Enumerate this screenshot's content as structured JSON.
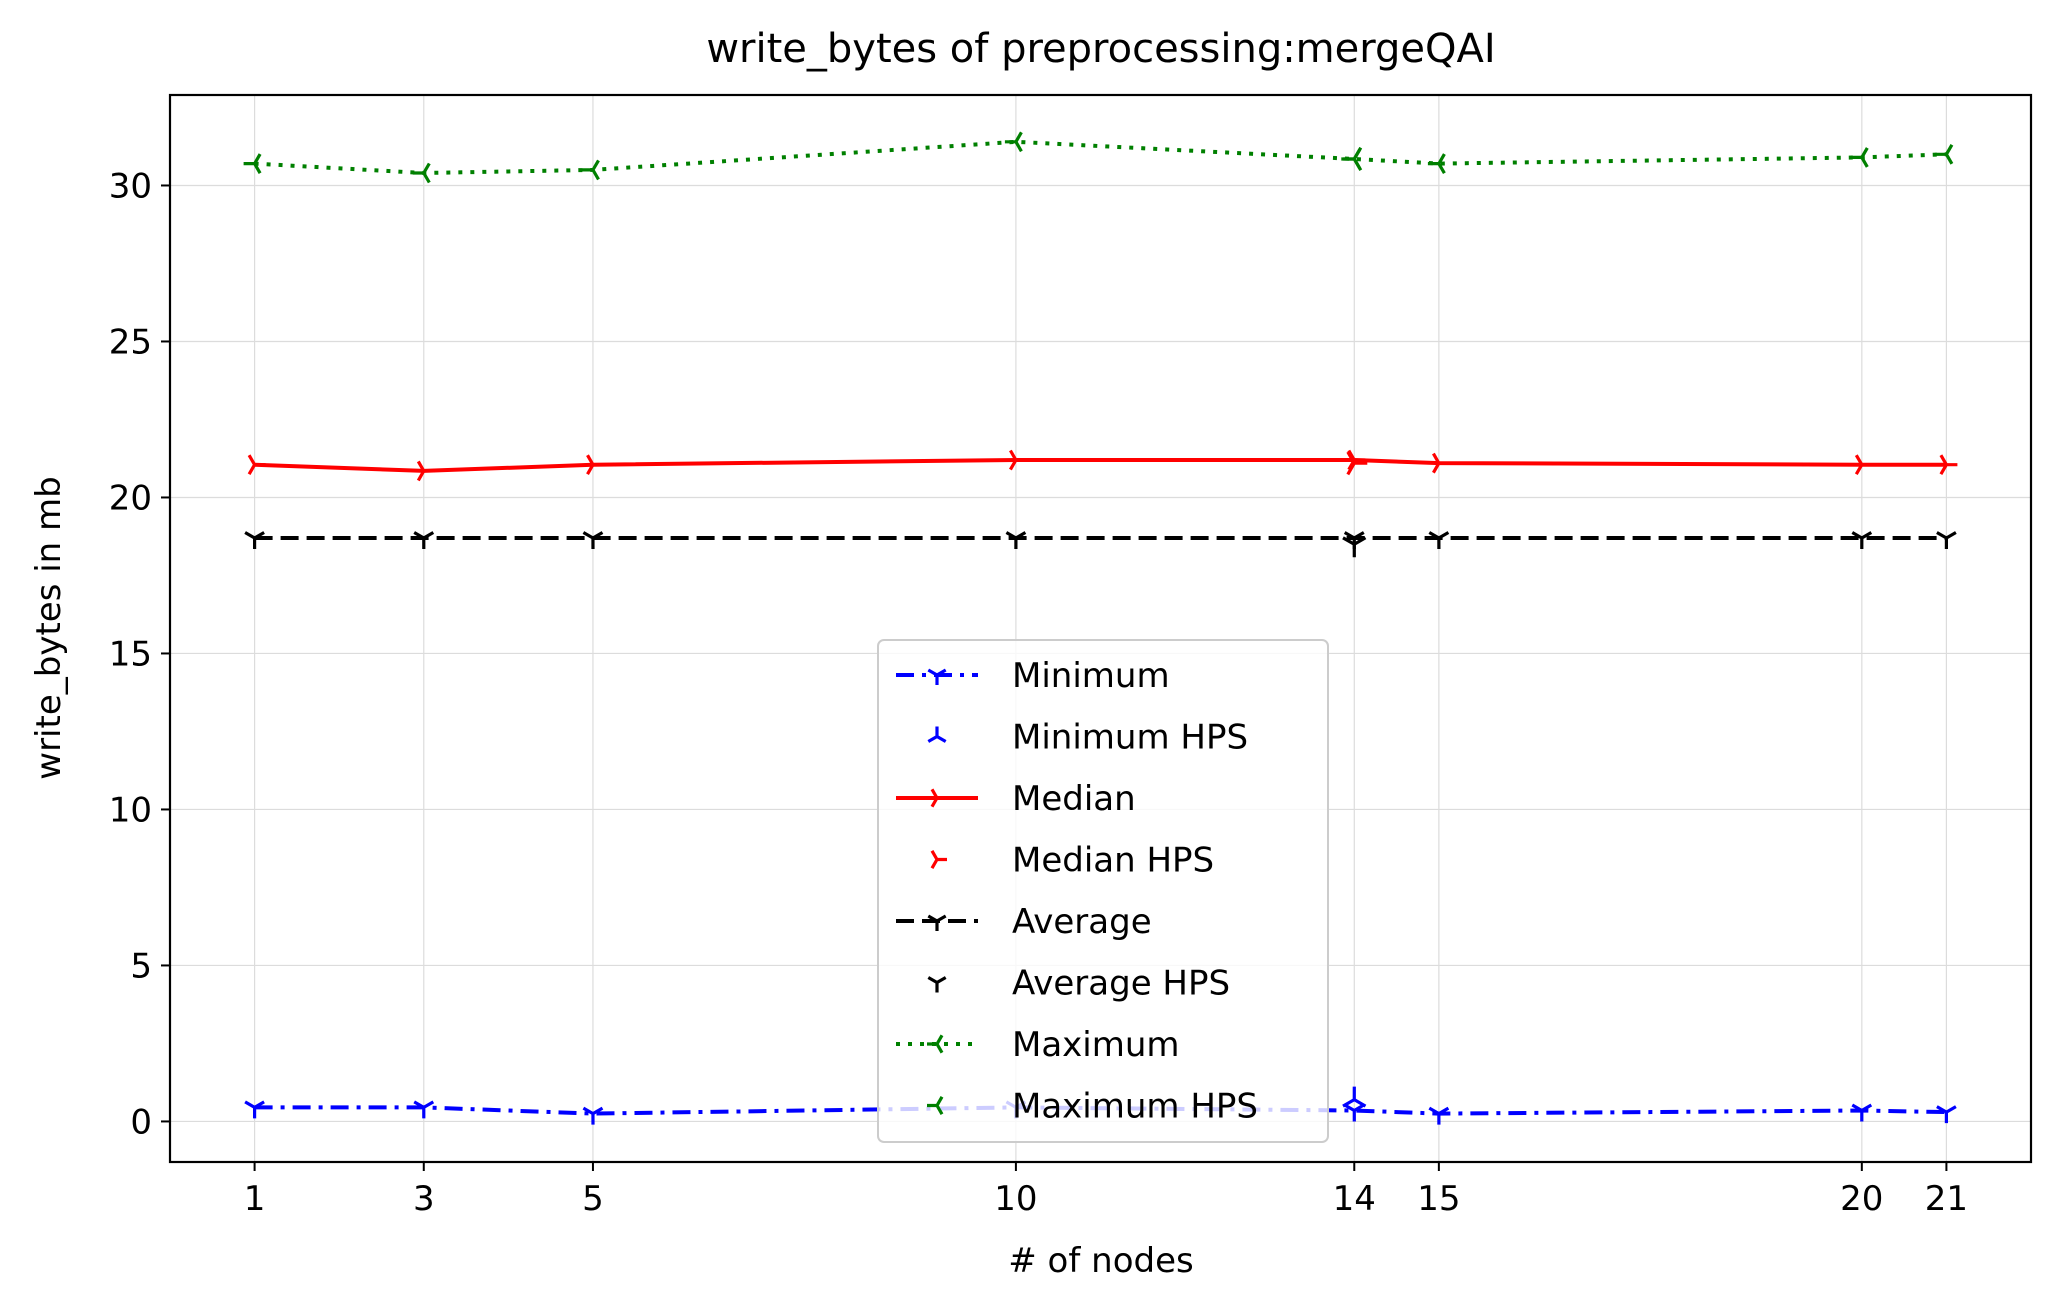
{
  "chart_data": {
    "type": "line",
    "title": "write_bytes of preprocessing:mergeQAI",
    "xlabel": "# of nodes",
    "ylabel": "write_bytes in mb",
    "xlim": [
      0,
      22
    ],
    "ylim": [
      -1.3,
      32.9
    ],
    "x_ticks": [
      1,
      3,
      5,
      10,
      14,
      15,
      20,
      21
    ],
    "y_ticks": [
      0,
      5,
      10,
      15,
      20,
      25,
      30
    ],
    "grid": true,
    "legend_position": "lower center",
    "x": [
      1,
      3,
      5,
      10,
      14,
      15,
      20,
      21
    ],
    "series": [
      {
        "name": "Minimum",
        "color": "#0000ff",
        "dash": "dashdot",
        "marker": "tri_down",
        "values": [
          0.45,
          0.45,
          0.25,
          0.45,
          0.35,
          0.25,
          0.35,
          0.3
        ]
      },
      {
        "name": "Median",
        "color": "#ff0000",
        "dash": "solid",
        "marker": "tri_right",
        "values": [
          21.05,
          20.85,
          21.05,
          21.2,
          21.2,
          21.1,
          21.05,
          21.05
        ]
      },
      {
        "name": "Average",
        "color": "#000000",
        "dash": "dashed",
        "marker": "tri_down",
        "values": [
          18.7,
          18.7,
          18.7,
          18.7,
          18.7,
          18.7,
          18.7,
          18.7
        ]
      },
      {
        "name": "Maximum",
        "color": "#008000",
        "dash": "dotted",
        "marker": "tri_left",
        "values": [
          30.7,
          30.4,
          30.5,
          31.4,
          30.85,
          30.7,
          30.9,
          31.0
        ]
      }
    ],
    "hps_series": [
      {
        "name": "Minimum HPS",
        "color": "#0000ff",
        "marker": "tri_up",
        "x": [
          14
        ],
        "values": [
          0.7
        ]
      },
      {
        "name": "Median HPS",
        "color": "#ff0000",
        "marker": "tri_right",
        "x": [
          14
        ],
        "values": [
          21.1
        ]
      },
      {
        "name": "Average HPS",
        "color": "#000000",
        "marker": "tri_down",
        "x": [
          14
        ],
        "values": [
          18.5
        ]
      },
      {
        "name": "Maximum HPS",
        "color": "#008000",
        "marker": "tri_left",
        "x": [
          14
        ],
        "values": [
          30.85
        ]
      }
    ],
    "legend": [
      "Minimum",
      "Minimum HPS",
      "Median",
      "Median HPS",
      "Average",
      "Average HPS",
      "Maximum",
      "Maximum HPS"
    ]
  }
}
